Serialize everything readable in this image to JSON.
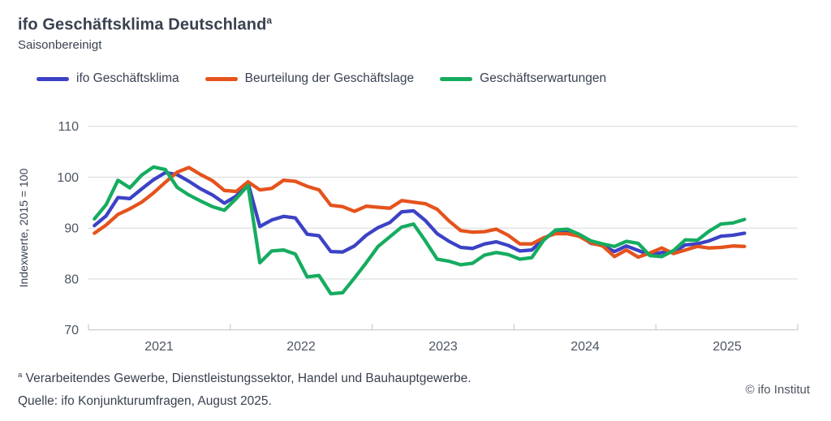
{
  "header": {
    "title": "ifo Geschäftsklima Deutschland",
    "title_superscript": "a",
    "subtitle": "Saisonbereinigt"
  },
  "legend": {
    "items": [
      {
        "label": "ifo Geschäftsklima",
        "color": "#3C42C5"
      },
      {
        "label": "Beurteilung der Geschäftslage",
        "color": "#E5531D"
      },
      {
        "label": "Geschäftserwartungen",
        "color": "#16AC60"
      }
    ]
  },
  "chart_data": {
    "type": "line",
    "frequency": "monthly",
    "x_start": "2021-01",
    "x_end": "2025-08",
    "x_tick_labels": [
      "2021",
      "2022",
      "2023",
      "2024",
      "2025"
    ],
    "y_axis": {
      "label": "Indexwerte, 2015 = 100",
      "tick_labels": [
        "110",
        "100",
        "90",
        "80",
        "70"
      ],
      "range": [
        70,
        110
      ]
    },
    "grid": "horizontal",
    "legend_position": "top",
    "series": [
      {
        "name": "ifo Geschäftsklima",
        "color": "#3C42C5",
        "values": [
          90.5,
          92.4,
          96.0,
          95.8,
          97.7,
          99.5,
          100.9,
          100.5,
          99.2,
          97.7,
          96.5,
          94.9,
          96.3,
          98.9,
          90.3,
          91.6,
          92.3,
          92.0,
          88.8,
          88.5,
          85.4,
          85.3,
          86.5,
          88.6,
          90.1,
          91.1,
          93.2,
          93.4,
          91.5,
          88.9,
          87.4,
          86.2,
          86.0,
          86.9,
          87.3,
          86.6,
          85.5,
          85.7,
          87.9,
          89.3,
          89.3,
          88.6,
          87.0,
          86.6,
          85.4,
          86.5,
          85.6,
          84.7,
          85.2,
          85.3,
          86.7,
          86.9,
          87.5,
          88.4,
          88.6,
          89.0
        ]
      },
      {
        "name": "Beurteilung der Geschäftslage",
        "color": "#E5531D",
        "values": [
          89.0,
          90.6,
          92.7,
          93.8,
          95.1,
          96.9,
          99.0,
          101.0,
          101.9,
          100.5,
          99.3,
          97.4,
          97.2,
          99.1,
          97.5,
          97.8,
          99.4,
          99.2,
          98.2,
          97.5,
          94.5,
          94.2,
          93.3,
          94.3,
          94.1,
          93.9,
          95.4,
          95.1,
          94.8,
          93.7,
          91.4,
          89.5,
          89.2,
          89.3,
          89.8,
          88.6,
          86.9,
          86.9,
          88.1,
          88.9,
          88.9,
          88.4,
          87.1,
          86.5,
          84.4,
          85.7,
          84.3,
          85.1,
          86.1,
          85.0,
          85.7,
          86.4,
          86.1,
          86.2,
          86.5,
          86.4
        ]
      },
      {
        "name": "Geschäftserwartungen",
        "color": "#16AC60",
        "values": [
          91.8,
          94.6,
          99.4,
          97.9,
          100.4,
          102.0,
          101.5,
          98.0,
          96.5,
          95.3,
          94.2,
          93.5,
          95.8,
          98.4,
          83.2,
          85.5,
          85.7,
          84.9,
          80.4,
          80.7,
          77.1,
          77.3,
          80.2,
          83.2,
          86.4,
          88.3,
          90.2,
          90.8,
          87.5,
          83.9,
          83.5,
          82.8,
          83.1,
          84.7,
          85.2,
          84.8,
          83.9,
          84.2,
          87.6,
          89.6,
          89.8,
          88.8,
          87.5,
          86.9,
          86.4,
          87.4,
          87.0,
          84.6,
          84.4,
          85.6,
          87.7,
          87.6,
          89.4,
          90.8,
          91.0,
          91.7
        ]
      }
    ]
  },
  "footnotes": {
    "marker": "a",
    "line1": "Verarbeitendes Gewerbe, Dienstleistungssektor, Handel und Bauhauptgewerbe.",
    "line2": "Quelle: ifo Konjunkturumfragen, August 2025.",
    "copyright": "© ifo Institut"
  },
  "colors": {
    "accent_blue": "#3C42C5",
    "accent_orange": "#E5531D",
    "accent_green": "#16AC60",
    "text_dark": "#39414F",
    "axis_text": "#4E5662",
    "gridline": "#DADCDE",
    "baseline": "#C7CACE",
    "background": "#FFFFFF"
  }
}
